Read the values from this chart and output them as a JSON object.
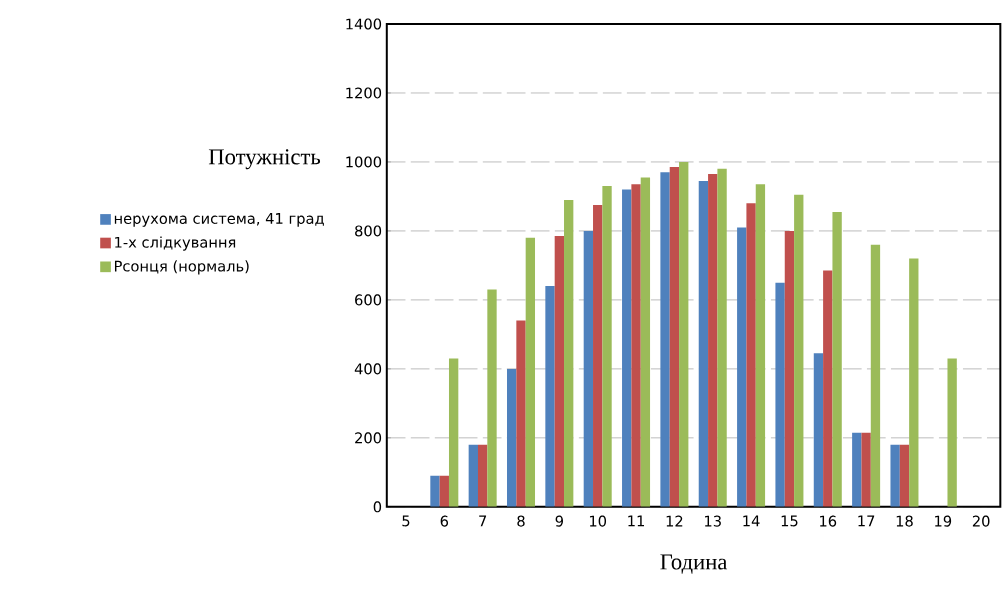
{
  "chart_data": {
    "type": "bar",
    "xlabel": "Година",
    "ylabel": "Потужність",
    "categories": [
      "5",
      "6",
      "7",
      "8",
      "9",
      "10",
      "11",
      "12",
      "13",
      "14",
      "15",
      "16",
      "17",
      "18",
      "19",
      "20"
    ],
    "series": [
      {
        "name": "нерухома система, 41 град",
        "color": "#4f81bd",
        "values": [
          0,
          90,
          180,
          400,
          640,
          800,
          920,
          970,
          945,
          810,
          650,
          445,
          215,
          180,
          0,
          0
        ]
      },
      {
        "name": "1-х слідкування",
        "color": "#c0504d",
        "values": [
          0,
          90,
          180,
          540,
          785,
          875,
          935,
          985,
          965,
          880,
          800,
          685,
          215,
          180,
          0,
          0
        ]
      },
      {
        "name": "Pсонця (нормаль)",
        "color": "#9bbb59",
        "values": [
          0,
          430,
          630,
          780,
          890,
          930,
          955,
          1000,
          980,
          935,
          905,
          855,
          760,
          720,
          430,
          0
        ]
      }
    ],
    "ylim": [
      0,
      1400
    ],
    "yticks": [
      0,
      200,
      400,
      600,
      800,
      1000,
      1200,
      1400
    ],
    "grid": "y",
    "legend": "left"
  }
}
